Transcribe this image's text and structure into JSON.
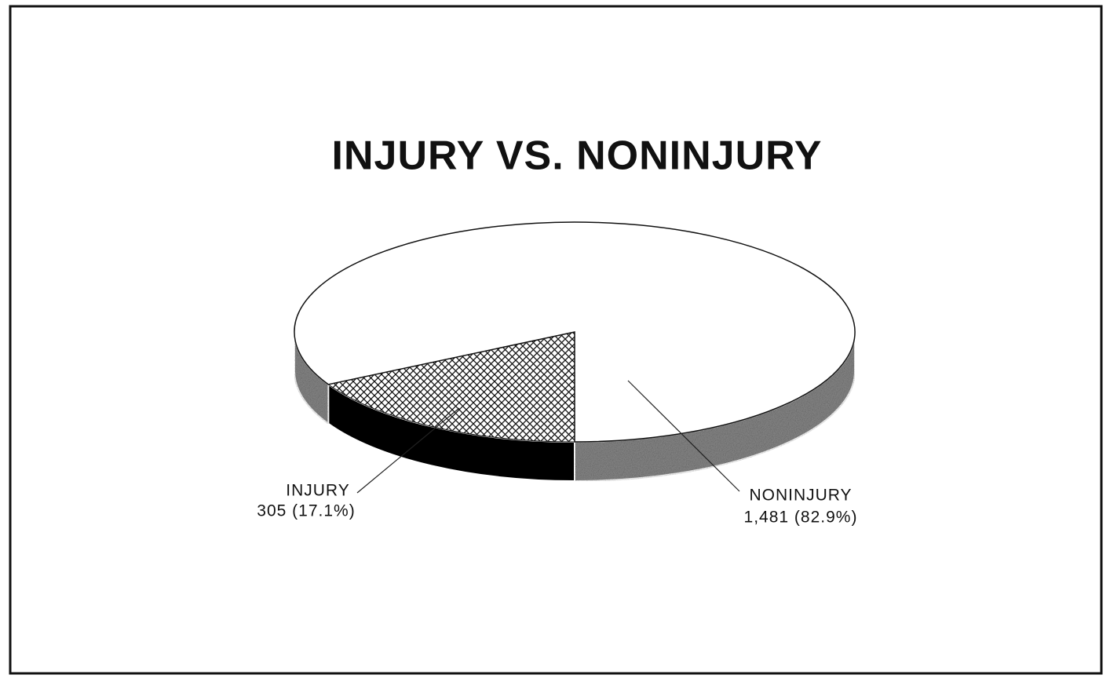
{
  "chart_data": {
    "type": "pie3d",
    "title": "INJURY VS. NONINJURY",
    "categories": [
      "INJURY",
      "NONINJURY"
    ],
    "values": [
      305,
      1481
    ],
    "value_labels": [
      "305 (17.1%)",
      "1,481 (82.9%)"
    ],
    "colors": [
      "#000000",
      "#8a8a8a"
    ]
  }
}
